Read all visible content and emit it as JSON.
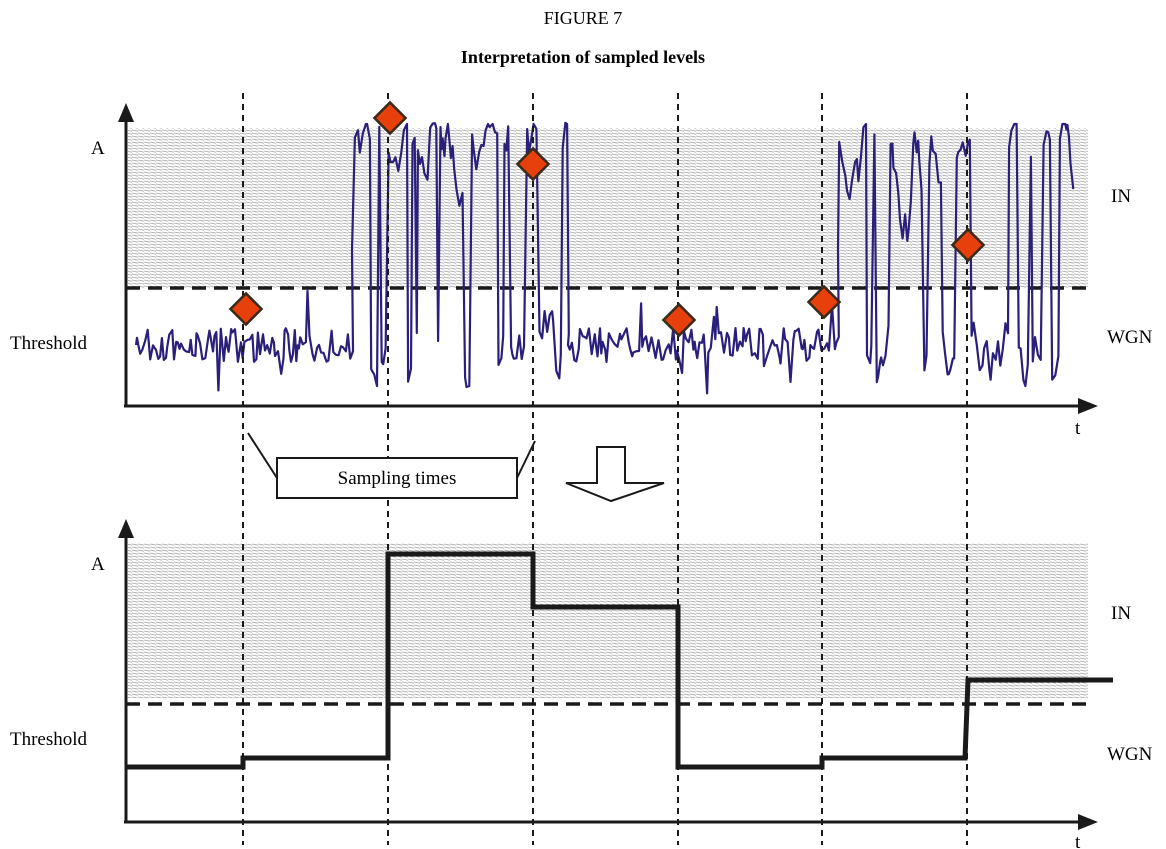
{
  "figure": {
    "number": "FIGURE 7",
    "title": "Interpretation of sampled levels"
  },
  "colors": {
    "signal": "#2a1f7a",
    "marker": "#e8400c",
    "marker_stroke": "#3a2a1a",
    "ink": "#1a1a1a",
    "hatch": "#9a9a9a"
  },
  "top_panel": {
    "y_label": "A",
    "threshold_label": "Threshold",
    "x_label": "t",
    "region_in_label": "IN",
    "region_noise_label": "WGN"
  },
  "bottom_panel": {
    "y_label": "A",
    "threshold_label": "Threshold",
    "x_label": "t",
    "region_in_label": "IN",
    "region_noise_label": "WGN"
  },
  "callout": {
    "label": "Sampling times"
  },
  "transition_arrow_icon": "down-arrow-icon"
}
